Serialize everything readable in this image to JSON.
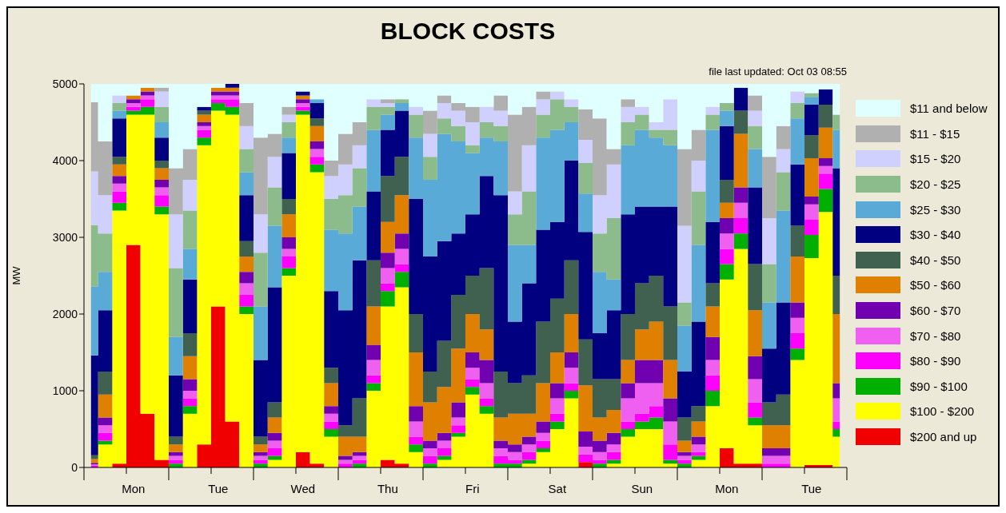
{
  "chart_data": {
    "type": "area",
    "title": "BLOCK COSTS",
    "ylabel": "MW",
    "annotations": [
      "file last updated: Oct 03 08:55"
    ],
    "stacked": true,
    "legend": "right",
    "categories": [
      null,
      null,
      null,
      "Mon",
      null,
      null,
      null,
      null,
      null,
      "Tue",
      null,
      null,
      null,
      null,
      null,
      "Wed",
      null,
      null,
      null,
      null,
      null,
      "Thu",
      null,
      null,
      null,
      null,
      null,
      "Fri",
      null,
      null,
      null,
      null,
      null,
      "Sat",
      null,
      null,
      null,
      null,
      null,
      "Sun",
      null,
      null,
      null,
      null,
      null,
      "Mon",
      null,
      null,
      null,
      null,
      null,
      "Tue",
      null,
      null
    ],
    "ylim": [
      0,
      5000
    ],
    "yticks": [
      0,
      1000,
      2000,
      3000,
      4000,
      5000
    ],
    "series": [
      {
        "name": "$200 and up",
        "color": "#f00000",
        "values": [
          0,
          0,
          50,
          2900,
          700,
          100,
          0,
          0,
          300,
          2100,
          600,
          0,
          0,
          0,
          0,
          200,
          50,
          0,
          0,
          0,
          0,
          100,
          50,
          0,
          0,
          0,
          0,
          0,
          0,
          0,
          0,
          0,
          0,
          0,
          0,
          70,
          0,
          0,
          0,
          0,
          0,
          0,
          0,
          0,
          0,
          250,
          50,
          50,
          0,
          0,
          0,
          30,
          30,
          0
        ]
      },
      {
        "name": "$100 - $200",
        "color": "#ffff00",
        "values": [
          0,
          300,
          3300,
          1700,
          3900,
          3200,
          0,
          700,
          3900,
          2550,
          4000,
          2000,
          0,
          100,
          2500,
          4400,
          3800,
          400,
          0,
          0,
          1000,
          2000,
          2300,
          200,
          0,
          100,
          400,
          950,
          700,
          0,
          0,
          50,
          200,
          500,
          900,
          0,
          0,
          50,
          400,
          500,
          500,
          50,
          0,
          100,
          800,
          2200,
          2800,
          500,
          0,
          0,
          1400,
          2700,
          3300,
          400
        ]
      },
      {
        "name": "$90 - $100",
        "color": "#00b000",
        "values": [
          0,
          50,
          100,
          50,
          100,
          100,
          50,
          100,
          100,
          100,
          100,
          100,
          50,
          50,
          100,
          50,
          100,
          100,
          0,
          50,
          100,
          200,
          200,
          100,
          50,
          50,
          50,
          100,
          100,
          50,
          50,
          50,
          50,
          100,
          100,
          0,
          50,
          50,
          100,
          100,
          150,
          50,
          50,
          50,
          200,
          200,
          200,
          100,
          0,
          0,
          150,
          300,
          300,
          100
        ]
      },
      {
        "name": "$80 - $90",
        "color": "#ff00ff",
        "values": [
          20,
          100,
          150,
          50,
          100,
          150,
          50,
          100,
          100,
          50,
          100,
          150,
          50,
          100,
          150,
          50,
          100,
          100,
          50,
          50,
          100,
          100,
          100,
          100,
          100,
          100,
          100,
          100,
          100,
          100,
          50,
          100,
          100,
          100,
          100,
          100,
          50,
          100,
          100,
          100,
          150,
          200,
          50,
          50,
          200,
          200,
          200,
          200,
          50,
          50,
          200,
          200,
          200,
          100
        ]
      },
      {
        "name": "$70 - $80",
        "color": "#f060f0",
        "values": [
          20,
          100,
          100,
          50,
          50,
          100,
          50,
          100,
          50,
          50,
          50,
          150,
          50,
          100,
          100,
          50,
          100,
          100,
          50,
          50,
          200,
          200,
          200,
          200,
          100,
          100,
          100,
          150,
          200,
          100,
          100,
          100,
          100,
          200,
          200,
          100,
          100,
          100,
          300,
          400,
          300,
          300,
          50,
          100,
          200,
          200,
          200,
          300,
          100,
          100,
          200,
          200,
          100,
          300
        ]
      },
      {
        "name": "$60 - $70",
        "color": "#7000b0",
        "values": [
          20,
          100,
          100,
          50,
          50,
          100,
          50,
          150,
          50,
          50,
          50,
          150,
          50,
          100,
          150,
          50,
          100,
          100,
          50,
          50,
          200,
          200,
          200,
          200,
          100,
          100,
          200,
          200,
          300,
          100,
          100,
          100,
          150,
          200,
          200,
          200,
          150,
          150,
          200,
          300,
          300,
          300,
          50,
          100,
          300,
          200,
          200,
          300,
          100,
          100,
          200,
          100,
          100,
          200
        ]
      },
      {
        "name": "$50 - $60",
        "color": "#e08000",
        "values": [
          50,
          300,
          150,
          50,
          50,
          150,
          100,
          300,
          100,
          50,
          50,
          200,
          100,
          200,
          300,
          50,
          200,
          300,
          250,
          200,
          500,
          400,
          500,
          700,
          500,
          600,
          700,
          500,
          400,
          300,
          400,
          300,
          500,
          400,
          500,
          600,
          300,
          300,
          300,
          400,
          500,
          500,
          150,
          200,
          400,
          200,
          700,
          600,
          300,
          300,
          600,
          500,
          400,
          900
        ]
      },
      {
        "name": "$40 - $50",
        "color": "#406050",
        "values": [
          50,
          300,
          100,
          0,
          0,
          100,
          100,
          300,
          50,
          0,
          0,
          200,
          100,
          200,
          200,
          0,
          100,
          200,
          150,
          500,
          600,
          600,
          500,
          500,
          400,
          600,
          700,
          500,
          800,
          600,
          400,
          500,
          800,
          700,
          700,
          600,
          500,
          400,
          600,
          600,
          600,
          700,
          300,
          200,
          300,
          300,
          300,
          600,
          300,
          400,
          400,
          300,
          300,
          500
        ]
      },
      {
        "name": "$30 - $40",
        "color": "#000080",
        "values": [
          1300,
          800,
          500,
          0,
          0,
          300,
          800,
          700,
          50,
          0,
          50,
          600,
          1000,
          1500,
          600,
          50,
          200,
          1000,
          1500,
          1800,
          900,
          600,
          600,
          1500,
          1500,
          1300,
          800,
          800,
          1200,
          2300,
          800,
          1200,
          1200,
          1000,
          1300,
          1400,
          600,
          900,
          1300,
          1000,
          900,
          1300,
          600,
          1100,
          800,
          700,
          300,
          1000,
          700,
          1200,
          800,
          400,
          200,
          1400
        ]
      },
      {
        "name": "$25 - $30",
        "color": "#5aaad8",
        "values": [
          900,
          500,
          100,
          0,
          0,
          200,
          500,
          400,
          0,
          0,
          0,
          300,
          700,
          800,
          200,
          0,
          50,
          800,
          1000,
          700,
          800,
          200,
          100,
          800,
          1000,
          1400,
          1200,
          800,
          500,
          700,
          1000,
          500,
          1200,
          1200,
          500,
          500,
          800,
          400,
          900,
          1000,
          900,
          800,
          600,
          1000,
          1200,
          200,
          0,
          500,
          600,
          1200,
          600,
          100,
          0,
          500
        ]
      },
      {
        "name": "$20 - $25",
        "color": "#8cbc8c",
        "values": [
          800,
          500,
          100,
          0,
          0,
          200,
          900,
          500,
          0,
          0,
          0,
          300,
          700,
          500,
          200,
          0,
          0,
          400,
          500,
          500,
          300,
          100,
          50,
          300,
          300,
          200,
          200,
          100,
          200,
          200,
          400,
          700,
          300,
          400,
          200,
          400,
          500,
          800,
          300,
          200,
          100,
          200,
          300,
          700,
          200,
          100,
          0,
          300,
          500,
          500,
          200,
          50,
          0,
          200
        ]
      },
      {
        "name": "$15 - $20",
        "color": "#d0d0ff",
        "values": [
          700,
          500,
          100,
          0,
          0,
          200,
          700,
          400,
          0,
          0,
          0,
          300,
          500,
          400,
          100,
          0,
          0,
          300,
          400,
          300,
          100,
          50,
          0,
          100,
          300,
          200,
          200,
          300,
          200,
          200,
          300,
          600,
          200,
          100,
          100,
          300,
          500,
          700,
          200,
          100,
          100,
          400,
          1000,
          400,
          100,
          0,
          0,
          200,
          600,
          300,
          150,
          0,
          0,
          0
        ]
      },
      {
        "name": "$11 - $15",
        "color": "#b0b0b0",
        "values": [
          900,
          700,
          0,
          0,
          0,
          50,
          600,
          400,
          0,
          0,
          0,
          300,
          1000,
          300,
          100,
          0,
          0,
          200,
          400,
          300,
          0,
          50,
          0,
          0,
          300,
          100,
          100,
          200,
          0,
          200,
          1000,
          500,
          100,
          0,
          0,
          400,
          1000,
          200,
          100,
          0,
          0,
          0,
          1000,
          400,
          0,
          0,
          0,
          200,
          800,
          300,
          0,
          0,
          0,
          0
        ]
      },
      {
        "name": "$11 and below",
        "color": "#e0ffff",
        "values": [
          240,
          750,
          150,
          150,
          50,
          50,
          1100,
          850,
          300,
          50,
          0,
          250,
          700,
          650,
          300,
          100,
          200,
          1000,
          650,
          500,
          200,
          200,
          200,
          300,
          350,
          150,
          250,
          300,
          300,
          150,
          400,
          300,
          100,
          100,
          200,
          330,
          450,
          850,
          200,
          300,
          500,
          200,
          850,
          600,
          300,
          250,
          50,
          150,
          950,
          550,
          100,
          120,
          70,
          400
        ]
      }
    ]
  }
}
